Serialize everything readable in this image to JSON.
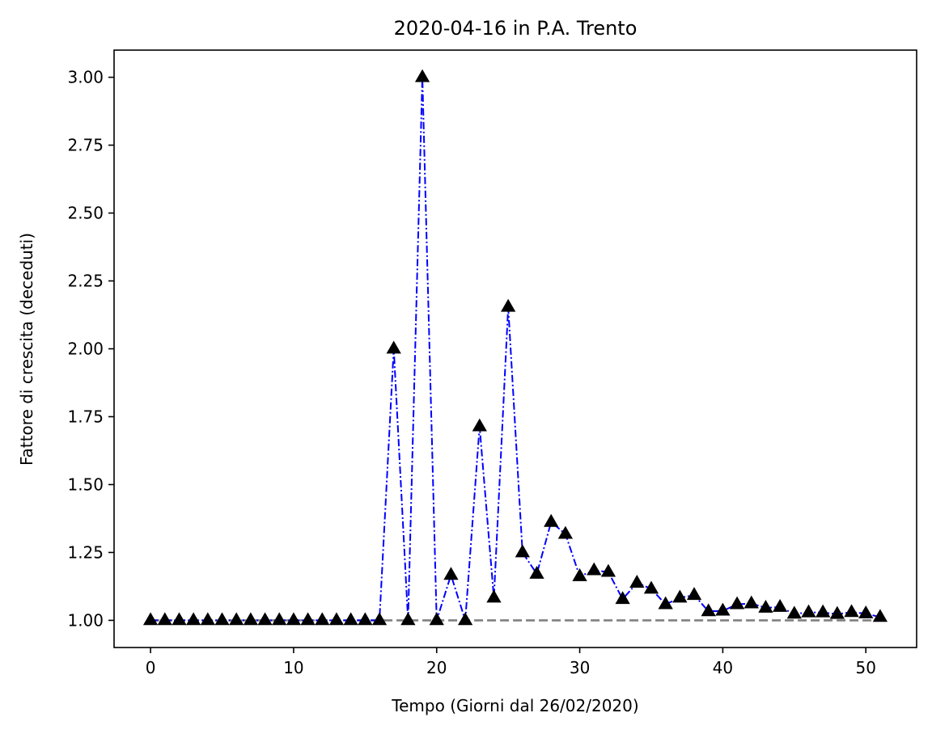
{
  "chart_data": {
    "type": "line",
    "title": "2020-04-16 in P.A. Trento",
    "xlabel": "Tempo (Giorni dal 26/02/2020)",
    "ylabel": "Fattore di crescita (deceduti)",
    "xlim": [
      -2.55,
      53.55
    ],
    "ylim": [
      0.9,
      3.1
    ],
    "xticks": [
      0,
      10,
      20,
      30,
      40,
      50
    ],
    "xtick_labels": [
      "0",
      "10",
      "20",
      "30",
      "40",
      "50"
    ],
    "yticks": [
      1.0,
      1.25,
      1.5,
      1.75,
      2.0,
      2.25,
      2.5,
      2.75,
      3.0
    ],
    "ytick_labels": [
      "1.00",
      "1.25",
      "1.50",
      "1.75",
      "2.00",
      "2.25",
      "2.50",
      "2.75",
      "3.00"
    ],
    "grid": false,
    "series": [
      {
        "style": "dash-dot line with triangle markers",
        "line_color": "#0000ff",
        "marker_color": "#000000",
        "x": [
          0,
          1,
          2,
          3,
          4,
          5,
          6,
          7,
          8,
          9,
          10,
          11,
          12,
          13,
          14,
          15,
          16,
          17,
          18,
          19,
          20,
          21,
          22,
          23,
          24,
          25,
          26,
          27,
          28,
          29,
          30,
          31,
          32,
          33,
          34,
          35,
          36,
          37,
          38,
          39,
          40,
          41,
          42,
          43,
          44,
          45,
          46,
          47,
          48,
          49,
          50,
          51
        ],
        "values": [
          1.0,
          1.0,
          1.0,
          1.0,
          1.0,
          1.0,
          1.0,
          1.0,
          1.0,
          1.0,
          1.0,
          1.0,
          1.0,
          1.0,
          1.0,
          1.0,
          1.0,
          2.0,
          1.0,
          3.0,
          1.0,
          1.167,
          1.0,
          1.714,
          1.083,
          2.154,
          1.25,
          1.171,
          1.362,
          1.318,
          1.162,
          1.184,
          1.178,
          1.078,
          1.138,
          1.116,
          1.059,
          1.083,
          1.093,
          1.033,
          1.035,
          1.059,
          1.062,
          1.046,
          1.049,
          1.024,
          1.029,
          1.029,
          1.023,
          1.03,
          1.025,
          1.012
        ]
      },
      {
        "style": "dashed reference line",
        "line_color": "#808080",
        "x": [
          0,
          51
        ],
        "values": [
          1.0,
          1.0
        ]
      }
    ]
  }
}
